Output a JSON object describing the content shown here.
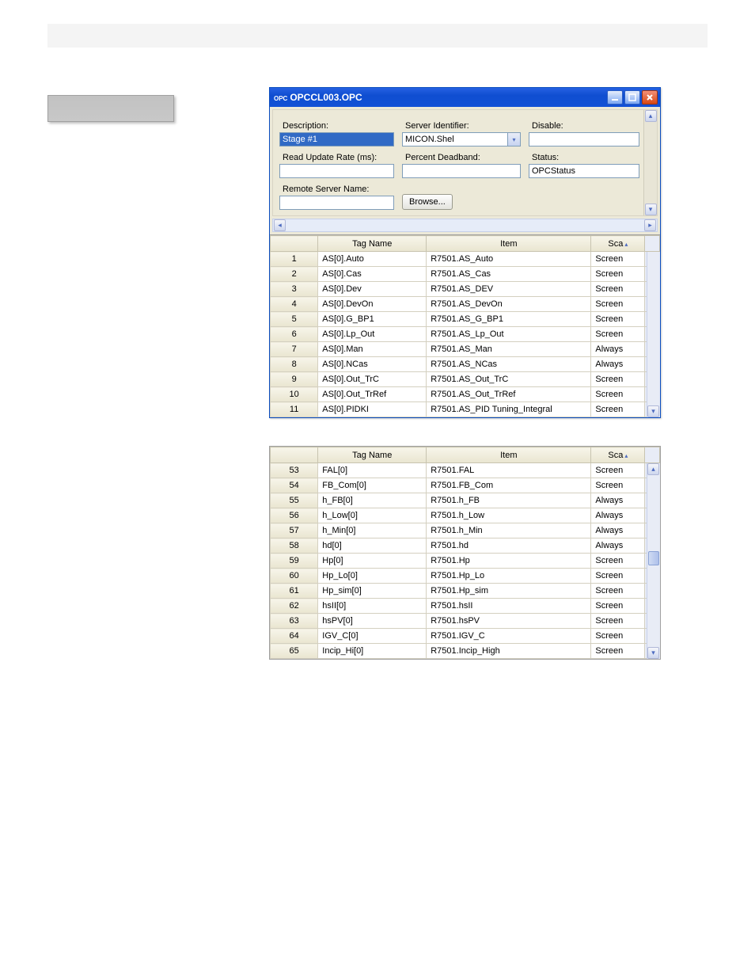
{
  "window": {
    "prefix": "OPC",
    "title": "OPCCL003.OPC"
  },
  "form": {
    "description": {
      "label": "Description:",
      "value": "Stage #1"
    },
    "server_identifier": {
      "label": "Server Identifier:",
      "value": "MICON.Shel"
    },
    "disable": {
      "label": "Disable:",
      "value": ""
    },
    "read_update_rate": {
      "label": "Read Update Rate (ms):",
      "value": ""
    },
    "percent_deadband": {
      "label": "Percent Deadband:",
      "value": ""
    },
    "status": {
      "label": "Status:",
      "value": "OPCStatus"
    },
    "remote_server_name": {
      "label": "Remote Server Name:",
      "value": ""
    },
    "browse_button": "Browse..."
  },
  "grid1": {
    "columns": {
      "rownum": "",
      "tag": "Tag Name",
      "item": "Item",
      "sca": "Sca"
    },
    "rows": [
      {
        "n": "1",
        "tag": "AS[0].Auto",
        "item": "R7501.AS_Auto",
        "sca": "Screen"
      },
      {
        "n": "2",
        "tag": "AS[0].Cas",
        "item": "R7501.AS_Cas",
        "sca": "Screen"
      },
      {
        "n": "3",
        "tag": "AS[0].Dev",
        "item": "R7501.AS_DEV",
        "sca": "Screen"
      },
      {
        "n": "4",
        "tag": "AS[0].DevOn",
        "item": "R7501.AS_DevOn",
        "sca": "Screen"
      },
      {
        "n": "5",
        "tag": "AS[0].G_BP1",
        "item": "R7501.AS_G_BP1",
        "sca": "Screen"
      },
      {
        "n": "6",
        "tag": "AS[0].Lp_Out",
        "item": "R7501.AS_Lp_Out",
        "sca": "Screen"
      },
      {
        "n": "7",
        "tag": "AS[0].Man",
        "item": "R7501.AS_Man",
        "sca": "Always"
      },
      {
        "n": "8",
        "tag": "AS[0].NCas",
        "item": "R7501.AS_NCas",
        "sca": "Always"
      },
      {
        "n": "9",
        "tag": "AS[0].Out_TrC",
        "item": "R7501.AS_Out_TrC",
        "sca": "Screen"
      },
      {
        "n": "10",
        "tag": "AS[0].Out_TrRef",
        "item": "R7501.AS_Out_TrRef",
        "sca": "Screen"
      },
      {
        "n": "11",
        "tag": "AS[0].PIDKI",
        "item": "R7501.AS_PID Tuning_Integral",
        "sca": "Screen"
      }
    ]
  },
  "grid2": {
    "columns": {
      "rownum": "",
      "tag": "Tag Name",
      "item": "Item",
      "sca": "Sca"
    },
    "rows": [
      {
        "n": "53",
        "tag": "FAL[0]",
        "item": "R7501.FAL",
        "sca": "Screen"
      },
      {
        "n": "54",
        "tag": "FB_Com[0]",
        "item": "R7501.FB_Com",
        "sca": "Screen"
      },
      {
        "n": "55",
        "tag": "h_FB[0]",
        "item": "R7501.h_FB",
        "sca": "Always"
      },
      {
        "n": "56",
        "tag": "h_Low[0]",
        "item": "R7501.h_Low",
        "sca": "Always"
      },
      {
        "n": "57",
        "tag": "h_Min[0]",
        "item": "R7501.h_Min",
        "sca": "Always"
      },
      {
        "n": "58",
        "tag": "hd[0]",
        "item": "R7501.hd",
        "sca": "Always"
      },
      {
        "n": "59",
        "tag": "Hp[0]",
        "item": "R7501.Hp",
        "sca": "Screen"
      },
      {
        "n": "60",
        "tag": "Hp_Lo[0]",
        "item": "R7501.Hp_Lo",
        "sca": "Screen"
      },
      {
        "n": "61",
        "tag": "Hp_sim[0]",
        "item": "R7501.Hp_sim",
        "sca": "Screen"
      },
      {
        "n": "62",
        "tag": "hsII[0]",
        "item": "R7501.hsII",
        "sca": "Screen"
      },
      {
        "n": "63",
        "tag": "hsPV[0]",
        "item": "R7501.hsPV",
        "sca": "Screen"
      },
      {
        "n": "64",
        "tag": "IGV_C[0]",
        "item": "R7501.IGV_C",
        "sca": "Screen"
      },
      {
        "n": "65",
        "tag": "Incip_Hi[0]",
        "item": "R7501.Incip_High",
        "sca": "Screen"
      }
    ]
  },
  "col_widths": {
    "rownum": 55,
    "tag": 125,
    "item": 190,
    "sca": 62
  },
  "colors": {
    "titlebar_start": "#2661e2",
    "titlebar_end": "#1251d6",
    "close_red": "#d84812",
    "panel_bg": "#ece9d8",
    "input_border": "#7f9db9",
    "highlight_bg": "#316ac5",
    "grid_header_bg": "#e9e5d0",
    "grid_border": "#d4d0c0"
  }
}
